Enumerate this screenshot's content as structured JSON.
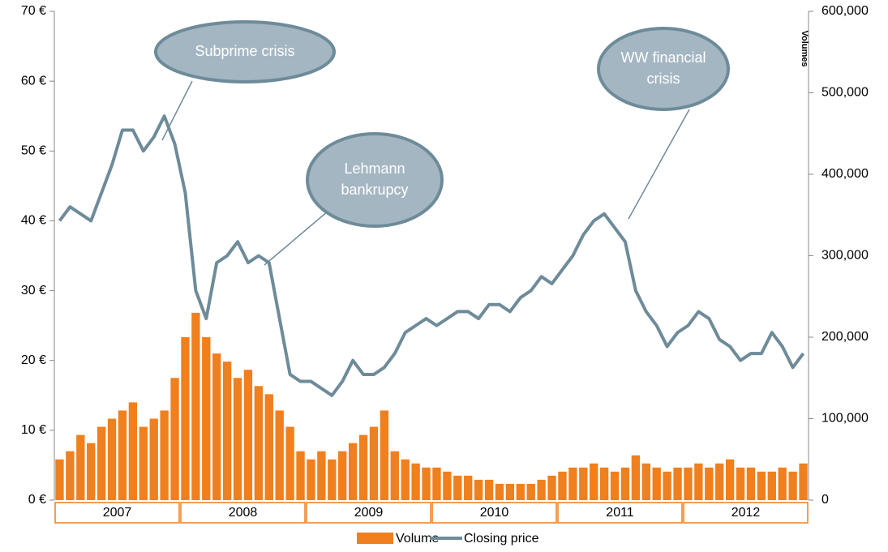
{
  "chart_data": {
    "type": "bar-line",
    "categories": [
      "2007",
      "2008",
      "2009",
      "2010",
      "2011",
      "2012"
    ],
    "series": [
      {
        "name": "Volume",
        "color": "#f07f1d",
        "axis": "y2",
        "values": [
          [
            50000,
            60000,
            80000,
            70000,
            90000,
            100000,
            110000,
            120000,
            90000,
            100000,
            110000,
            150000
          ],
          [
            200000,
            230000,
            200000,
            180000,
            170000,
            150000,
            160000,
            140000,
            130000,
            110000,
            90000,
            60000
          ],
          [
            50000,
            60000,
            50000,
            60000,
            70000,
            80000,
            90000,
            110000,
            60000,
            50000,
            45000,
            40000
          ],
          [
            40000,
            35000,
            30000,
            30000,
            25000,
            25000,
            20000,
            20000,
            20000,
            20000,
            25000,
            30000
          ],
          [
            35000,
            40000,
            40000,
            45000,
            40000,
            35000,
            40000,
            55000,
            45000,
            40000,
            35000,
            40000
          ],
          [
            40000,
            45000,
            40000,
            45000,
            50000,
            40000,
            40000,
            35000,
            35000,
            40000,
            35000,
            45000
          ]
        ]
      },
      {
        "name": "Closing price",
        "color": "#6e8b99",
        "values": [
          [
            40,
            42,
            41,
            40,
            44,
            48,
            53,
            53,
            50,
            52,
            55,
            51
          ],
          [
            44,
            30,
            26,
            34,
            35,
            37,
            34,
            35,
            34,
            26,
            18,
            17
          ],
          [
            17,
            16,
            15,
            17,
            20,
            18,
            18,
            19,
            21,
            24,
            25,
            26
          ],
          [
            25,
            26,
            27,
            27,
            26,
            28,
            28,
            27,
            29,
            30,
            32,
            31
          ],
          [
            33,
            35,
            38,
            40,
            41,
            39,
            37,
            30,
            27,
            25,
            22,
            24
          ],
          [
            25,
            27,
            26,
            23,
            22,
            20,
            21,
            21,
            24,
            22,
            19,
            21
          ]
        ]
      }
    ],
    "ylim": [
      0,
      70
    ],
    "yticks": [
      {
        "value": 0,
        "label": "0 €"
      },
      {
        "value": 10,
        "label": "10 €"
      },
      {
        "value": 20,
        "label": "20 €"
      },
      {
        "value": 30,
        "label": "30 €"
      },
      {
        "value": 40,
        "label": "40 €"
      },
      {
        "value": 50,
        "label": "50 €"
      },
      {
        "value": 60,
        "label": "60 €"
      },
      {
        "value": 70,
        "label": "70 €"
      }
    ],
    "y2label": "Volumes",
    "y2lim": [
      0,
      600000
    ],
    "y2ticks": [
      0,
      {
        "value": 100000,
        "label": "100,000"
      },
      {
        "value": 200000,
        "label": "200,000"
      },
      {
        "value": 300000,
        "label": "300,000"
      },
      {
        "value": 400000,
        "label": "400,000"
      },
      {
        "value": 500000,
        "label": "500,000"
      },
      {
        "value": 600000,
        "label": "600,000"
      }
    ],
    "annotations": [
      "Subprime crisis",
      "Lehmann bankrupcy",
      "WW financial crisis"
    ],
    "legend": "bottom"
  }
}
